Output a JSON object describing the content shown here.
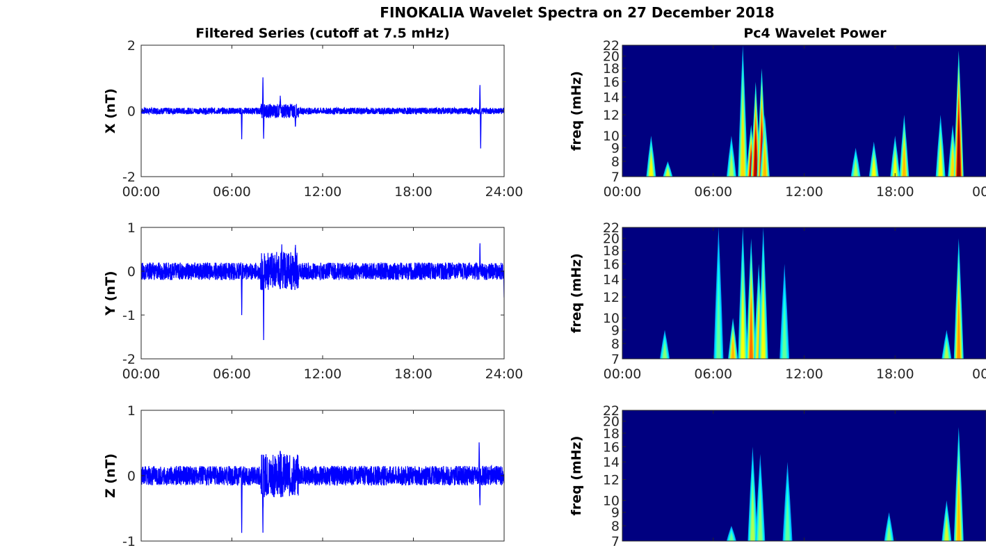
{
  "figure_title": "FINOKALIA Wavelet Spectra on 27 December 2018",
  "left_column_title": "Filtered Series (cutoff at 7.5 mHz)",
  "right_column_title": "Pc4 Wavelet Power",
  "chart_data": [
    {
      "type": "line",
      "component": "X",
      "ylabel": "X (nT)",
      "ylim": [
        -2,
        2
      ],
      "yticks": [
        -2,
        0,
        2
      ],
      "xticks": [
        "00:00",
        "06:00",
        "12:00",
        "18:00",
        "24:00"
      ],
      "xlim_hours": [
        0,
        24
      ],
      "series_color": "#0000ff",
      "baseline_amplitude": 0.1,
      "features": [
        {
          "t": 6.65,
          "value": -0.9
        },
        {
          "t": 8.05,
          "value": 1.12
        },
        {
          "t": 8.1,
          "value": -0.9
        },
        {
          "t": 9.2,
          "value": 0.5
        },
        {
          "t": 10.2,
          "value": -0.55
        },
        {
          "t": 22.4,
          "value": 0.85
        },
        {
          "t": 22.45,
          "value": -1.2
        }
      ]
    },
    {
      "type": "line",
      "component": "Y",
      "ylabel": "Y (nT)",
      "ylim": [
        -2,
        1
      ],
      "yticks": [
        -2,
        -1,
        0,
        1
      ],
      "xticks": [
        "00:00",
        "06:00",
        "12:00",
        "18:00",
        "24:00"
      ],
      "xlim_hours": [
        0,
        24
      ],
      "series_color": "#0000ff",
      "baseline_amplitude": 0.2,
      "features": [
        {
          "t": 6.65,
          "value": -1.05
        },
        {
          "t": 8.1,
          "value": -1.65
        },
        {
          "t": 9.3,
          "value": 0.65
        },
        {
          "t": 10.2,
          "value": 0.65
        },
        {
          "t": 22.4,
          "value": 0.7
        },
        {
          "t": 24.0,
          "value": -0.6
        }
      ]
    },
    {
      "type": "line",
      "component": "Z",
      "ylabel": "Z (nT)",
      "ylim": [
        -1,
        1
      ],
      "yticks": [
        -1,
        0,
        1
      ],
      "xlim_hours": [
        0,
        24
      ],
      "series_color": "#0000ff",
      "baseline_amplitude": 0.15,
      "features": [
        {
          "t": 6.65,
          "value": -0.92
        },
        {
          "t": 8.05,
          "value": -0.97
        },
        {
          "t": 9.2,
          "value": 0.4
        },
        {
          "t": 22.35,
          "value": 0.55
        },
        {
          "t": 22.4,
          "value": -0.5
        }
      ]
    },
    {
      "type": "heatmap",
      "component": "X",
      "ylabel": "freq (mHz)",
      "ylim_mhz": [
        7,
        22
      ],
      "yticks": [
        7,
        8,
        9,
        10,
        12,
        14,
        16,
        18,
        20,
        22
      ],
      "xticks": [
        "00:00",
        "06:00",
        "12:00",
        "18:00",
        "00"
      ],
      "xlim_hours": [
        0,
        24
      ],
      "colormap": "jet",
      "background_color": "#000080",
      "hotspots": [
        {
          "t": 1.9,
          "f_max": 10,
          "power": 0.5
        },
        {
          "t": 3.0,
          "f_max": 8,
          "power": 0.45
        },
        {
          "t": 7.2,
          "f_max": 10,
          "power": 0.4
        },
        {
          "t": 7.95,
          "f_max": 22,
          "power": 0.55
        },
        {
          "t": 8.5,
          "f_max": 11,
          "power": 0.9
        },
        {
          "t": 8.8,
          "f_max": 16,
          "power": 0.95
        },
        {
          "t": 9.2,
          "f_max": 18,
          "power": 0.9
        },
        {
          "t": 9.4,
          "f_max": 12,
          "power": 0.6
        },
        {
          "t": 15.4,
          "f_max": 9,
          "power": 0.4
        },
        {
          "t": 16.6,
          "f_max": 9.5,
          "power": 0.5
        },
        {
          "t": 18.0,
          "f_max": 10,
          "power": 0.5
        },
        {
          "t": 18.6,
          "f_max": 12,
          "power": 0.6
        },
        {
          "t": 21.0,
          "f_max": 12,
          "power": 0.5
        },
        {
          "t": 21.8,
          "f_max": 11,
          "power": 0.55
        },
        {
          "t": 22.2,
          "f_max": 21,
          "power": 1.0
        }
      ]
    },
    {
      "type": "heatmap",
      "component": "Y",
      "ylabel": "freq (mHz)",
      "ylim_mhz": [
        7,
        22
      ],
      "yticks": [
        7,
        8,
        9,
        10,
        12,
        14,
        16,
        18,
        20,
        22
      ],
      "xticks": [
        "00:00",
        "06:00",
        "12:00",
        "18:00",
        "00"
      ],
      "xlim_hours": [
        0,
        24
      ],
      "colormap": "jet",
      "background_color": "#000080",
      "hotspots": [
        {
          "t": 2.8,
          "f_max": 9,
          "power": 0.35
        },
        {
          "t": 6.35,
          "f_max": 22,
          "power": 0.3
        },
        {
          "t": 7.3,
          "f_max": 10,
          "power": 0.6
        },
        {
          "t": 7.95,
          "f_max": 22,
          "power": 0.5
        },
        {
          "t": 8.5,
          "f_max": 20,
          "power": 0.7
        },
        {
          "t": 9.0,
          "f_max": 16,
          "power": 0.55
        },
        {
          "t": 9.3,
          "f_max": 22,
          "power": 0.5
        },
        {
          "t": 10.7,
          "f_max": 16,
          "power": 0.3
        },
        {
          "t": 21.4,
          "f_max": 9,
          "power": 0.4
        },
        {
          "t": 22.2,
          "f_max": 20,
          "power": 0.65
        }
      ]
    },
    {
      "type": "heatmap",
      "component": "Z",
      "ylabel": "freq (mHz)",
      "ylim_mhz": [
        7,
        22
      ],
      "yticks": [
        7,
        8,
        9,
        10,
        12,
        14,
        16,
        18,
        20,
        22
      ],
      "xlim_hours": [
        0,
        24
      ],
      "colormap": "jet",
      "background_color": "#000080",
      "hotspots": [
        {
          "t": 7.2,
          "f_max": 8,
          "power": 0.3
        },
        {
          "t": 8.6,
          "f_max": 16,
          "power": 0.4
        },
        {
          "t": 9.1,
          "f_max": 15,
          "power": 0.35
        },
        {
          "t": 10.9,
          "f_max": 14,
          "power": 0.3
        },
        {
          "t": 17.6,
          "f_max": 9,
          "power": 0.35
        },
        {
          "t": 21.4,
          "f_max": 10,
          "power": 0.45
        },
        {
          "t": 22.2,
          "f_max": 19,
          "power": 0.6
        }
      ]
    }
  ]
}
